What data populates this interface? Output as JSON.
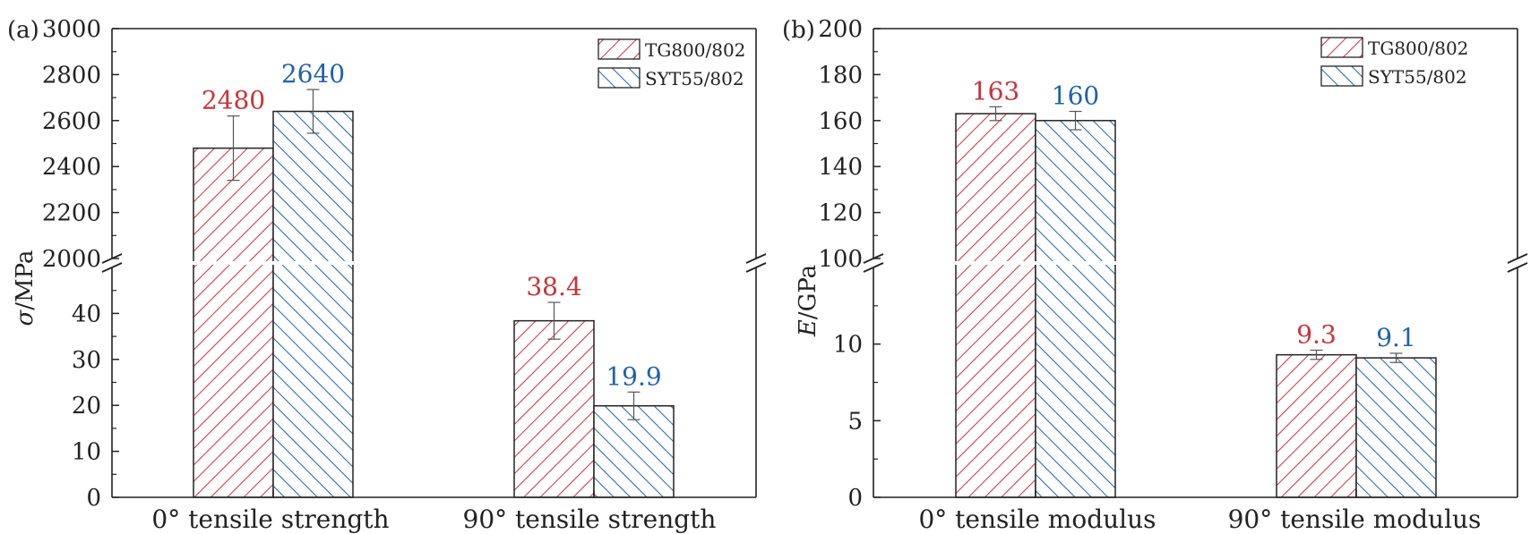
{
  "colors": {
    "red": "#c8343a",
    "blue": "#1f63a8",
    "axis": "#222222"
  },
  "chart_data": [
    {
      "type": "bar",
      "panel_label": "(a)",
      "ylabel_symbol": "σ",
      "ylabel_unit": "/MPa",
      "broken_axis": true,
      "upper_segment": {
        "ylim": [
          2000,
          3000
        ],
        "ticks": [
          "2000",
          "2200",
          "2400",
          "2600",
          "2800",
          "3000"
        ]
      },
      "lower_segment": {
        "ylim": [
          0,
          50
        ],
        "ticks": [
          "0",
          "10",
          "20",
          "30",
          "40"
        ]
      },
      "categories": [
        "0°   tensile strength",
        "90°   tensile strength"
      ],
      "legend_position": "top-right",
      "series": [
        {
          "name": "TG800/802",
          "color": "#c8343a",
          "hatch": "forward",
          "values": [
            2480,
            38.4
          ],
          "errors": [
            140,
            4
          ],
          "labels": [
            "2480",
            "38.4"
          ]
        },
        {
          "name": "SYT55/802",
          "color": "#1f63a8",
          "hatch": "backward",
          "values": [
            2640,
            19.9
          ],
          "errors": [
            95,
            3
          ],
          "labels": [
            "2640",
            "19.9"
          ]
        }
      ]
    },
    {
      "type": "bar",
      "panel_label": "(b)",
      "ylabel_symbol": "E",
      "ylabel_unit": "/GPa",
      "broken_axis": true,
      "upper_segment": {
        "ylim": [
          100,
          200
        ],
        "ticks": [
          "100",
          "120",
          "140",
          "160",
          "180",
          "200"
        ]
      },
      "lower_segment": {
        "ylim": [
          0,
          15
        ],
        "ticks": [
          "0",
          "5",
          "10"
        ]
      },
      "categories": [
        "0°   tensile modulus",
        "90°   tensile modulus"
      ],
      "legend_position": "top-right",
      "series": [
        {
          "name": "TG800/802",
          "color": "#c8343a",
          "hatch": "forward",
          "values": [
            163,
            9.3
          ],
          "errors": [
            3,
            0.3
          ],
          "labels": [
            "163",
            "9.3"
          ]
        },
        {
          "name": "SYT55/802",
          "color": "#1f63a8",
          "hatch": "backward",
          "values": [
            160,
            9.1
          ],
          "errors": [
            4,
            0.3
          ],
          "labels": [
            "160",
            "9.1"
          ]
        }
      ]
    }
  ]
}
